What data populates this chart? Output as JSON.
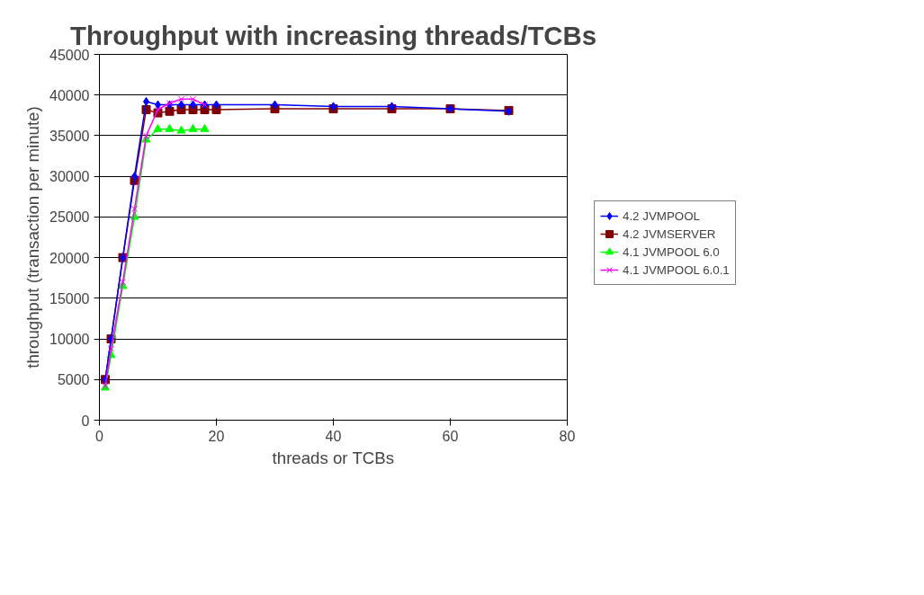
{
  "chart_data": {
    "type": "line",
    "title": "Throughput with increasing threads/TCBs",
    "xlabel": "threads or TCBs",
    "ylabel": "throughput (transaction per minute)",
    "xlim": [
      0,
      80
    ],
    "xticks": [
      0,
      20,
      40,
      60,
      80
    ],
    "ylim": [
      0,
      45000
    ],
    "yticks": [
      0,
      5000,
      10000,
      15000,
      20000,
      25000,
      30000,
      35000,
      40000,
      45000
    ],
    "grid": "y",
    "legend": "right",
    "series": [
      {
        "name": "4.2 JVMPOOL",
        "color": "#0000ff",
        "marker": "diamond",
        "x": [
          1,
          2,
          4,
          6,
          8,
          10,
          12,
          14,
          16,
          18,
          20,
          30,
          40,
          50,
          60,
          70
        ],
        "values": [
          5000,
          10000,
          20000,
          30000,
          39200,
          38800,
          38800,
          38800,
          38800,
          38800,
          38800,
          38800,
          38600,
          38600,
          38300,
          38000
        ]
      },
      {
        "name": "4.2 JVMSERVER",
        "color": "#800000",
        "marker": "square",
        "x": [
          1,
          2,
          4,
          6,
          8,
          10,
          12,
          14,
          16,
          18,
          20,
          30,
          40,
          50,
          60,
          70
        ],
        "values": [
          5000,
          10000,
          20000,
          29500,
          38200,
          37800,
          38000,
          38200,
          38200,
          38200,
          38200,
          38300,
          38300,
          38300,
          38300,
          38100
        ]
      },
      {
        "name": "4.1 JVMPOOL 6.0",
        "color": "#00ff00",
        "marker": "triangle",
        "x": [
          1,
          2,
          4,
          6,
          8,
          10,
          12,
          14,
          16,
          18
        ],
        "values": [
          4000,
          8000,
          16500,
          25000,
          34500,
          35800,
          35800,
          35600,
          35800,
          35800
        ]
      },
      {
        "name": "4.1 JVMPOOL 6.0.1",
        "color": "#ff00ff",
        "marker": "cross",
        "x": [
          1,
          2,
          4,
          6,
          8,
          10,
          12,
          14,
          16,
          18
        ],
        "values": [
          4200,
          8800,
          17000,
          26000,
          35000,
          38200,
          39000,
          39500,
          39500,
          38800
        ]
      }
    ]
  }
}
